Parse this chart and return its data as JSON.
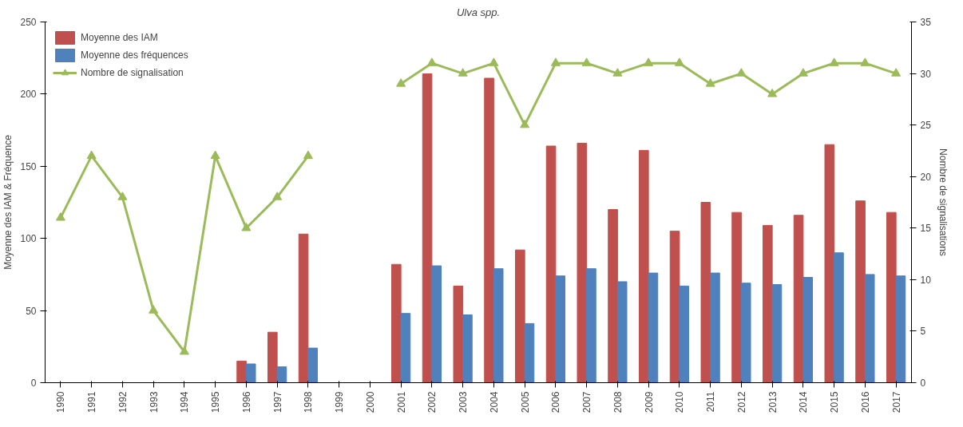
{
  "chart_data": {
    "type": "bar",
    "title": "Ulva spp.",
    "ylabel": "Moyenne des IAM & Fréquence",
    "y2label": "Nombre de signalisations",
    "categories": [
      "1990",
      "1991",
      "1992",
      "1993",
      "1994",
      "1995",
      "1996",
      "1997",
      "1998",
      "1999",
      "2000",
      "2001",
      "2002",
      "2003",
      "2004",
      "2005",
      "2006",
      "2007",
      "2008",
      "2009",
      "2010",
      "2011",
      "2012",
      "2013",
      "2014",
      "2015",
      "2016",
      "2017"
    ],
    "series": [
      {
        "name": "Moyenne des IAM",
        "color": "#c0504d",
        "values": [
          null,
          null,
          null,
          null,
          null,
          null,
          15,
          35,
          103,
          null,
          null,
          82,
          214,
          67,
          211,
          92,
          164,
          166,
          120,
          161,
          105,
          125,
          118,
          109,
          116,
          165,
          126,
          118
        ]
      },
      {
        "name": "Moyenne des fréquences",
        "color": "#4f81bd",
        "values": [
          null,
          null,
          null,
          null,
          null,
          null,
          13,
          11,
          24,
          null,
          null,
          48,
          81,
          47,
          79,
          41,
          74,
          79,
          70,
          76,
          67,
          76,
          69,
          68,
          73,
          90,
          75,
          74
        ]
      },
      {
        "name": "Nombre de signalisation",
        "color": "#9bbb59",
        "type": "line",
        "axis": "y2",
        "marker": "triangle",
        "values": [
          16,
          22,
          18,
          7,
          3,
          22,
          15,
          18,
          22,
          null,
          null,
          29,
          31,
          30,
          31,
          25,
          31,
          31,
          30,
          31,
          31,
          29,
          30,
          28,
          30,
          31,
          31,
          30
        ]
      }
    ],
    "ylim": [
      0,
      250
    ],
    "yticks": [
      0,
      50,
      100,
      150,
      200,
      250
    ],
    "y2lim": [
      0,
      35
    ],
    "y2ticks": [
      0,
      5,
      10,
      15,
      20,
      25,
      30,
      35
    ],
    "legend": "top left",
    "grid": false
  }
}
